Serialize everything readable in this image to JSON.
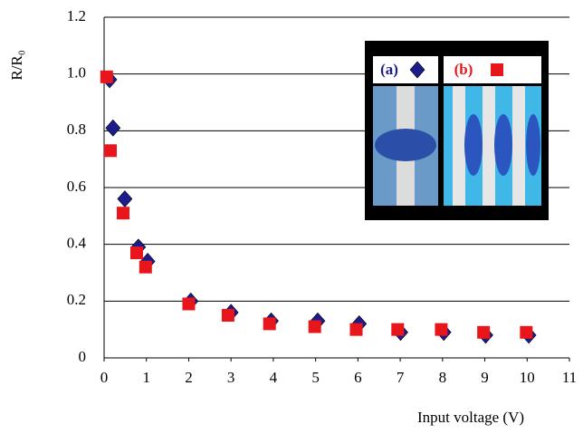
{
  "chart_data": {
    "type": "scatter",
    "y_label": "R/R₀",
    "x_label": "Input voltage (V)",
    "xlim": [
      0,
      11
    ],
    "xticks": [
      0,
      1,
      2,
      3,
      4,
      5,
      6,
      7,
      8,
      9,
      10,
      11
    ],
    "ylim": [
      0,
      1.2
    ],
    "yticks": [
      0,
      0.2,
      0.4,
      0.6,
      0.8,
      {
        "value": 1,
        "label": "1.0"
      },
      1.2
    ],
    "grid": true,
    "series": [
      {
        "name": "(a)",
        "marker": "diamond",
        "color": "#1c1c8c",
        "x": [
          0.13,
          0.21,
          0.49,
          0.81,
          1.03,
          2.05,
          3.0,
          3.95,
          5.05,
          6.03,
          7.01,
          8.03,
          9.02,
          10.04
        ],
        "values": [
          0.98,
          0.81,
          0.56,
          0.39,
          0.34,
          0.2,
          0.16,
          0.13,
          0.13,
          0.12,
          0.09,
          0.09,
          0.08,
          0.08
        ]
      },
      {
        "name": "(b)",
        "marker": "square",
        "color": "#e8161b",
        "x": [
          0.06,
          0.15,
          0.45,
          0.77,
          0.98,
          2.0,
          2.93,
          3.91,
          4.98,
          5.96,
          6.94,
          7.97,
          8.97,
          9.98
        ],
        "values": [
          0.99,
          0.73,
          0.51,
          0.37,
          0.32,
          0.19,
          0.15,
          0.12,
          0.11,
          0.1,
          0.1,
          0.1,
          0.09,
          0.09
        ]
      }
    ]
  }
}
